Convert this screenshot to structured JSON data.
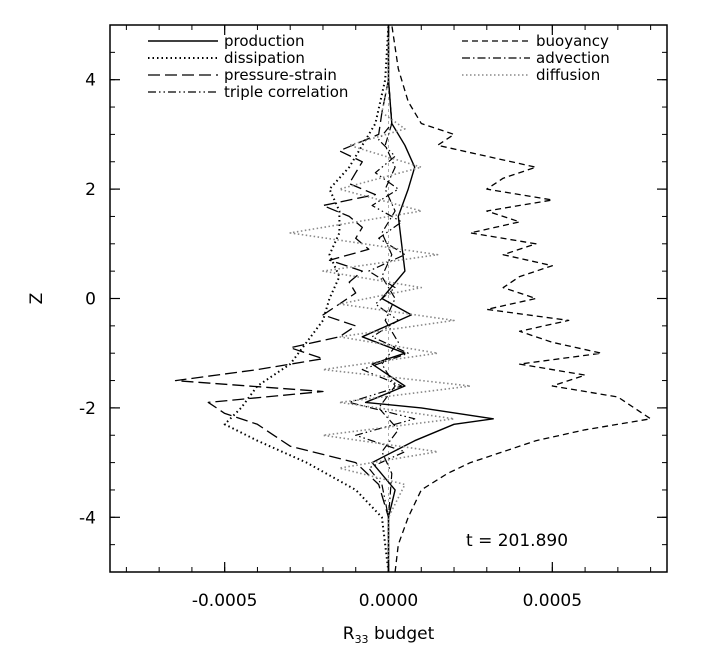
{
  "chart_data": {
    "type": "line",
    "orientation": "vertical-profile",
    "xlabel_main": "R",
    "xlabel_sub": "33",
    "xlabel_rest": " budget",
    "ylabel": "Z",
    "xlim": [
      -0.00085,
      0.00085
    ],
    "ylim": [
      -5,
      5
    ],
    "x_ticks": [
      -0.0005,
      0.0,
      0.0005
    ],
    "x_tick_labels": [
      "-0.0005",
      "0.0000",
      "0.0005"
    ],
    "y_ticks": [
      -4,
      -2,
      0,
      2,
      4
    ],
    "y_tick_labels": [
      "-4",
      "-2",
      "0",
      "2",
      "4"
    ],
    "annotation": "t = 201.890",
    "grid": false,
    "legend_placement": "top",
    "series": [
      {
        "name": "production",
        "style": "solid",
        "color": "#000000",
        "z": [
          -5,
          -4,
          -3.5,
          -3,
          -2.6,
          -2.3,
          -2.2,
          -2.0,
          -1.9,
          -1.6,
          -1.2,
          -1.0,
          -0.7,
          -0.3,
          0,
          0.5,
          1.0,
          1.5,
          2.0,
          2.4,
          2.8,
          3.2,
          4,
          5
        ],
        "x": [
          0,
          0,
          2e-05,
          -5e-05,
          8e-05,
          0.0002,
          0.00032,
          0.0001,
          -7e-05,
          5e-05,
          -5e-05,
          5e-05,
          -8e-05,
          7e-05,
          -2e-05,
          5e-05,
          4e-05,
          3e-05,
          6e-05,
          8e-05,
          5e-05,
          1e-05,
          0,
          0
        ]
      },
      {
        "name": "dissipation",
        "style": "dotted",
        "color": "#000000",
        "z": [
          -5,
          -4,
          -3.5,
          -3.0,
          -2.6,
          -2.3,
          -2.0,
          -1.6,
          -1.2,
          -0.8,
          -0.4,
          0.0,
          0.4,
          0.8,
          1.2,
          1.6,
          2.0,
          2.4,
          2.8,
          3.2,
          4,
          5
        ],
        "x": [
          0,
          -2e-05,
          -0.0001,
          -0.00025,
          -0.0004,
          -0.0005,
          -0.00045,
          -0.0004,
          -0.0003,
          -0.00025,
          -0.0002,
          -0.00018,
          -0.00015,
          -0.00018,
          -0.00015,
          -0.00015,
          -0.00018,
          -0.00012,
          -8e-05,
          -4e-05,
          -1e-05,
          0
        ]
      },
      {
        "name": "pressure-strain",
        "style": "longdash",
        "color": "#000000",
        "z": [
          -5,
          -4,
          -3.4,
          -3.0,
          -2.7,
          -2.5,
          -2.3,
          -2.1,
          -1.9,
          -1.7,
          -1.5,
          -1.3,
          -1.1,
          -0.9,
          -0.7,
          -0.5,
          -0.3,
          -0.1,
          0.1,
          0.3,
          0.5,
          0.7,
          0.9,
          1.1,
          1.3,
          1.5,
          1.7,
          1.9,
          2.1,
          2.3,
          2.5,
          2.7,
          3.0,
          3.4,
          4,
          5
        ],
        "x": [
          0,
          0,
          -3e-05,
          -0.0001,
          -0.0003,
          -0.00035,
          -0.0004,
          -0.0005,
          -0.00055,
          -0.0002,
          -0.00065,
          -0.0004,
          -0.0002,
          -0.0003,
          -0.00015,
          -0.0001,
          -0.0002,
          -0.00015,
          -0.0001,
          -0.00012,
          -8e-05,
          -0.00018,
          -6e-05,
          -0.0001,
          -8e-05,
          -0.00012,
          -0.0002,
          -4e-05,
          -0.00012,
          -0.0001,
          -8e-05,
          -0.00015,
          -3e-05,
          -2e-05,
          0,
          0
        ]
      },
      {
        "name": "triple correlation",
        "style": "dashdotdot",
        "color": "#000000",
        "z": [
          -5,
          -4,
          -3.4,
          -3.1,
          -2.8,
          -2.5,
          -2.2,
          -1.9,
          -1.6,
          -1.3,
          -1.0,
          -0.7,
          -0.4,
          -0.1,
          0.2,
          0.5,
          0.8,
          1.1,
          1.4,
          1.7,
          2.0,
          2.3,
          2.6,
          2.9,
          3.2,
          4,
          5
        ],
        "x": [
          0,
          0,
          -2e-05,
          -6e-05,
          5e-05,
          -0.0001,
          8e-05,
          -0.00012,
          4e-05,
          -8e-05,
          6e-05,
          -5e-05,
          3e-05,
          -4e-05,
          2e-05,
          -6e-05,
          5e-05,
          -3e-05,
          4e-05,
          -5e-05,
          3e-05,
          -4e-05,
          2e-05,
          -3e-05,
          1e-05,
          0,
          0
        ]
      },
      {
        "name": "buoyancy",
        "style": "shortdash",
        "color": "#000000",
        "z": [
          -5,
          -4.5,
          -4,
          -3.5,
          -3.2,
          -3.0,
          -2.8,
          -2.6,
          -2.4,
          -2.2,
          -2.0,
          -1.8,
          -1.6,
          -1.4,
          -1.2,
          -1.0,
          -0.8,
          -0.6,
          -0.4,
          -0.2,
          0.0,
          0.2,
          0.4,
          0.6,
          0.8,
          1.0,
          1.2,
          1.4,
          1.6,
          1.8,
          2.0,
          2.2,
          2.4,
          2.6,
          2.8,
          3.0,
          3.2,
          3.6,
          4.2,
          5
        ],
        "x": [
          2e-05,
          3e-05,
          6e-05,
          0.0001,
          0.00018,
          0.00025,
          0.00035,
          0.00045,
          0.0006,
          0.0008,
          0.00075,
          0.0007,
          0.0005,
          0.0006,
          0.0004,
          0.00065,
          0.0005,
          0.0004,
          0.00055,
          0.0003,
          0.00045,
          0.00035,
          0.0004,
          0.0005,
          0.00035,
          0.00045,
          0.00025,
          0.0004,
          0.0003,
          0.0005,
          0.0003,
          0.00035,
          0.00045,
          0.0003,
          0.00015,
          0.0002,
          0.0001,
          6e-05,
          3e-05,
          1e-05
        ]
      },
      {
        "name": "advection",
        "style": "dashdot",
        "color": "#000000",
        "z": [
          -5,
          -4,
          -3.2,
          -2.8,
          -2.4,
          -2.0,
          -1.6,
          -1.2,
          -0.8,
          -0.4,
          0.0,
          0.4,
          0.8,
          1.2,
          1.6,
          2.0,
          2.4,
          2.8,
          3.2,
          4,
          5
        ],
        "x": [
          0,
          0,
          1e-05,
          -2e-05,
          3e-05,
          -3e-05,
          2e-05,
          -2e-05,
          3e-05,
          -1e-05,
          2e-05,
          -2e-05,
          1e-05,
          -2e-05,
          2e-05,
          -1e-05,
          2e-05,
          -1e-05,
          1e-05,
          0,
          0
        ]
      },
      {
        "name": "diffusion",
        "style": "grey-dotted",
        "color": "#888888",
        "z": [
          -5,
          -4,
          -3.4,
          -3.1,
          -2.8,
          -2.5,
          -2.2,
          -1.9,
          -1.6,
          -1.3,
          -1.0,
          -0.7,
          -0.4,
          -0.1,
          0.2,
          0.5,
          0.8,
          1.2,
          1.6,
          2.0,
          2.4,
          2.8,
          3.1,
          3.4,
          4,
          5
        ],
        "x": [
          0,
          0,
          5e-05,
          -0.00015,
          0.00015,
          -0.0002,
          0.0002,
          -0.00015,
          0.00025,
          -0.0002,
          0.00015,
          -0.00015,
          0.0002,
          -0.00015,
          0.0001,
          -0.0002,
          0.00015,
          -0.0003,
          0.0001,
          -0.00015,
          0.0001,
          -0.00012,
          5e-05,
          -2e-05,
          0,
          0
        ]
      }
    ]
  }
}
